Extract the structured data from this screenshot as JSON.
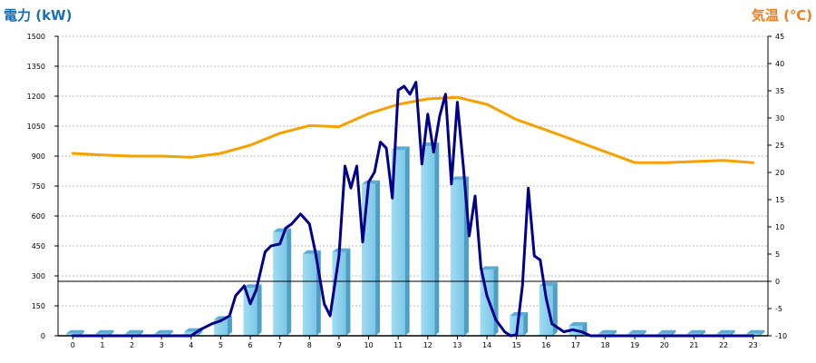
{
  "chart_data": {
    "type": "bar+line",
    "left_axis": {
      "label": "電力 (kW)",
      "range": [
        0,
        1500
      ],
      "ticks": [
        "0",
        "150",
        "300",
        "450",
        "600",
        "750",
        "900",
        "1050",
        "1200",
        "1350",
        "1500"
      ],
      "color": "#1a6fb4"
    },
    "right_axis": {
      "label": "気温 (℃)",
      "range": [
        -10,
        45
      ],
      "ticks": [
        "-10",
        "-5",
        "0",
        "5",
        "10",
        "15",
        "20",
        "25",
        "30",
        "35",
        "40",
        "45"
      ],
      "color": "#f07e1e"
    },
    "categories": [
      "0",
      "1",
      "2",
      "3",
      "4",
      "5",
      "6",
      "7",
      "8",
      "9",
      "10",
      "11",
      "12",
      "13",
      "14",
      "15",
      "16",
      "17",
      "18",
      "19",
      "20",
      "21",
      "22",
      "23"
    ],
    "grid": true,
    "reference_line": {
      "axis": "right",
      "value": 0
    },
    "series": [
      {
        "kind": "bar",
        "axis": "left",
        "color": "#87ceeb",
        "values": [
          10,
          10,
          10,
          10,
          20,
          80,
          240,
          520,
          410,
          420,
          760,
          930,
          950,
          780,
          330,
          100,
          250,
          50,
          10,
          10,
          10,
          10,
          10,
          10
        ]
      },
      {
        "kind": "line",
        "axis": "right",
        "color": "#f5a100",
        "x": [
          0,
          1,
          2,
          3,
          4,
          5,
          6,
          7,
          8,
          9,
          10,
          11,
          12,
          13,
          14,
          15,
          16,
          17,
          18,
          19,
          20,
          21,
          22,
          23
        ],
        "values": [
          23.5,
          23.2,
          23.0,
          23.0,
          22.8,
          23.5,
          25.0,
          27.2,
          28.6,
          28.4,
          30.8,
          32.5,
          33.5,
          33.8,
          32.5,
          29.7,
          27.8,
          25.8,
          23.8,
          21.8,
          21.8,
          22.0,
          22.2,
          21.8
        ]
      },
      {
        "kind": "line",
        "axis": "left",
        "color": "#00008b",
        "x": [
          0,
          1,
          2,
          3,
          4,
          4.3,
          4.7,
          5.0,
          5.3,
          5.5,
          5.8,
          6.0,
          6.2,
          6.5,
          6.7,
          7.0,
          7.2,
          7.4,
          7.7,
          8.0,
          8.2,
          8.5,
          8.7,
          9.0,
          9.2,
          9.4,
          9.6,
          9.8,
          10.0,
          10.2,
          10.4,
          10.6,
          10.8,
          11.0,
          11.2,
          11.4,
          11.6,
          11.8,
          12.0,
          12.2,
          12.4,
          12.6,
          12.8,
          13.0,
          13.2,
          13.4,
          13.6,
          13.8,
          14.0,
          14.3,
          14.6,
          14.8,
          15.0,
          15.2,
          15.4,
          15.6,
          15.8,
          16.0,
          16.2,
          16.4,
          16.6,
          16.9,
          17.2,
          17.5,
          18,
          19,
          20,
          21,
          22,
          23
        ],
        "values": [
          0,
          0,
          0,
          0,
          0,
          30,
          60,
          75,
          100,
          200,
          250,
          160,
          230,
          420,
          450,
          460,
          540,
          560,
          610,
          560,
          420,
          160,
          100,
          400,
          850,
          740,
          850,
          470,
          770,
          820,
          970,
          940,
          690,
          1230,
          1250,
          1210,
          1270,
          860,
          1110,
          920,
          1100,
          1210,
          760,
          1170,
          850,
          500,
          700,
          340,
          200,
          80,
          20,
          0,
          5,
          250,
          740,
          400,
          380,
          190,
          60,
          40,
          20,
          30,
          20,
          0,
          0,
          0,
          0,
          0,
          0,
          0
        ]
      }
    ]
  }
}
